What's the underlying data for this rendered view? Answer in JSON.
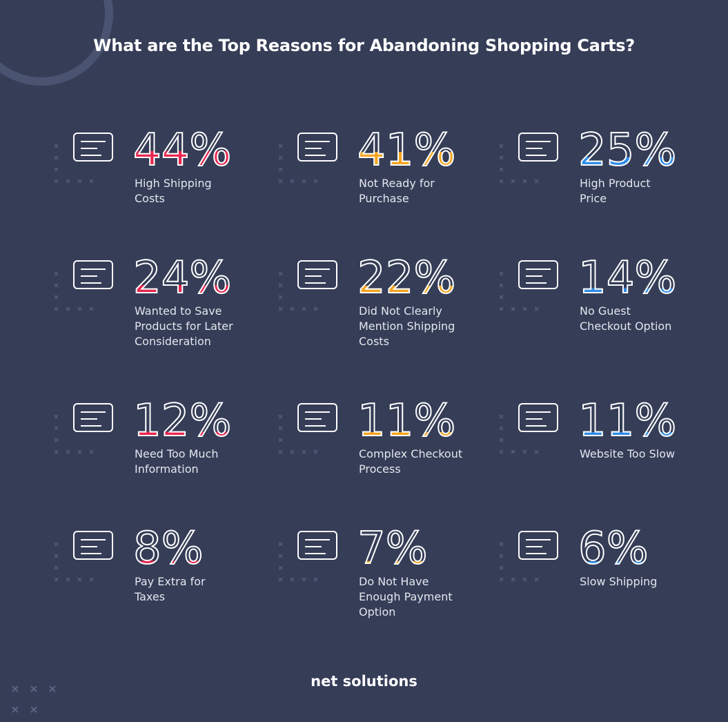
{
  "title": "What are the Top Reasons for Abandoning Shopping Carts?",
  "items": [
    {
      "stat": {
        "value": 44,
        "label": "44%"
      },
      "lines": [
        "High Shipping",
        "Costs"
      ],
      "color": "#e8264f"
    },
    {
      "stat": {
        "value": 41,
        "label": "41%"
      },
      "lines": [
        "Not Ready for",
        "Purchase"
      ],
      "color": "#f5a31f"
    },
    {
      "stat": {
        "value": 25,
        "label": "25%"
      },
      "lines": [
        "High Product",
        "Price"
      ],
      "color": "#2f8ce9"
    },
    {
      "stat": {
        "value": 24,
        "label": "24%"
      },
      "lines": [
        "Wanted to Save",
        "Products for Later",
        "Consideration"
      ],
      "color": "#e8264f"
    },
    {
      "stat": {
        "value": 22,
        "label": "22%"
      },
      "lines": [
        "Did Not Clearly",
        "Mention Shipping",
        "Costs"
      ],
      "color": "#f5a31f"
    },
    {
      "stat": {
        "value": 14,
        "label": "14%"
      },
      "lines": [
        "No Guest",
        "Checkout Option"
      ],
      "color": "#2f8ce9"
    },
    {
      "stat": {
        "value": 12,
        "label": "12%"
      },
      "lines": [
        "Need Too Much",
        "Information"
      ],
      "color": "#e8264f"
    },
    {
      "stat": {
        "value": 11,
        "label": "11%"
      },
      "lines": [
        "Complex Checkout",
        "Process"
      ],
      "color": "#f5a31f"
    },
    {
      "stat": {
        "value": 11,
        "label": "11%"
      },
      "lines": [
        "Website Too Slow"
      ],
      "color": "#2f8ce9"
    },
    {
      "stat": {
        "value": 8,
        "label": "8%"
      },
      "lines": [
        "Pay Extra for",
        "Taxes"
      ],
      "color": "#e8264f"
    },
    {
      "stat": {
        "value": 7,
        "label": "7%"
      },
      "lines": [
        "Do Not Have",
        "Enough Payment",
        "Option"
      ],
      "color": "#f5a31f"
    },
    {
      "stat": {
        "value": 6,
        "label": "6%"
      },
      "lines": [
        "Slow Shipping"
      ],
      "color": "#2f8ce9"
    }
  ],
  "brand": "net solutions"
}
